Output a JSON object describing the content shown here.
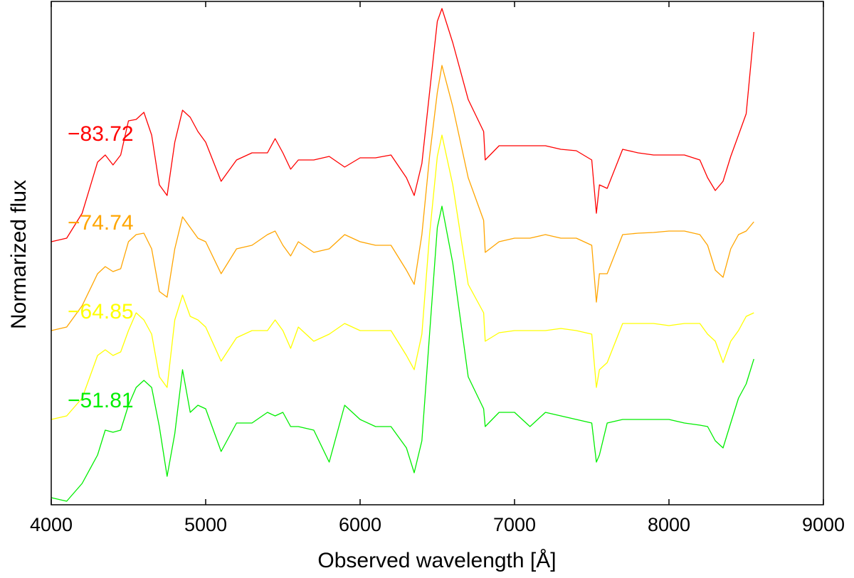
{
  "chart_data": {
    "type": "line",
    "xlabel": "Observed wavelength [Å]",
    "ylabel": "Normarized flux",
    "xlim": [
      4000,
      9000
    ],
    "xticks": [
      4000,
      5000,
      6000,
      7000,
      8000,
      9000
    ],
    "ylim": [
      0,
      7
    ],
    "x": [
      4000,
      4100,
      4200,
      4300,
      4350,
      4400,
      4450,
      4500,
      4550,
      4600,
      4650,
      4700,
      4750,
      4800,
      4850,
      4900,
      4950,
      5000,
      5100,
      5200,
      5300,
      5400,
      5450,
      5500,
      5550,
      5600,
      5700,
      5800,
      5900,
      6000,
      6100,
      6200,
      6300,
      6350,
      6400,
      6450,
      6500,
      6530,
      6600,
      6700,
      6800,
      6810,
      6900,
      7000,
      7100,
      7200,
      7300,
      7400,
      7500,
      7530,
      7550,
      7600,
      7700,
      7800,
      7900,
      8000,
      8100,
      8200,
      8250,
      8300,
      8350,
      8400,
      8450,
      8500,
      8550
    ],
    "series": [
      {
        "name": "−83.72",
        "color": "#ff0000",
        "values": [
          3.7,
          3.75,
          4.1,
          4.82,
          4.92,
          4.78,
          4.92,
          5.4,
          5.42,
          5.52,
          5.2,
          4.5,
          4.35,
          5.1,
          5.55,
          5.45,
          5.25,
          5.1,
          4.55,
          4.85,
          4.95,
          4.95,
          5.15,
          4.95,
          4.72,
          4.85,
          4.85,
          4.9,
          4.75,
          4.88,
          4.88,
          4.92,
          4.6,
          4.35,
          4.8,
          5.8,
          6.8,
          6.98,
          6.5,
          5.7,
          5.25,
          4.85,
          5.05,
          5.05,
          5.05,
          5.05,
          5.0,
          4.98,
          4.85,
          4.1,
          4.5,
          4.45,
          5.0,
          4.95,
          4.92,
          4.92,
          4.92,
          4.85,
          4.6,
          4.42,
          4.55,
          4.9,
          5.2,
          5.5,
          6.65
        ]
      },
      {
        "name": "−74.74",
        "color": "#ffa500",
        "values": [
          2.45,
          2.5,
          2.8,
          3.25,
          3.35,
          3.28,
          3.32,
          3.7,
          3.8,
          3.82,
          3.6,
          3.0,
          2.92,
          3.6,
          4.05,
          3.9,
          3.75,
          3.7,
          3.25,
          3.6,
          3.65,
          3.8,
          3.85,
          3.65,
          3.5,
          3.7,
          3.55,
          3.6,
          3.8,
          3.7,
          3.65,
          3.65,
          3.3,
          3.1,
          3.8,
          4.9,
          5.8,
          6.18,
          5.6,
          4.6,
          4.0,
          3.55,
          3.7,
          3.75,
          3.75,
          3.8,
          3.75,
          3.75,
          3.65,
          2.85,
          3.25,
          3.25,
          3.8,
          3.82,
          3.83,
          3.85,
          3.85,
          3.8,
          3.65,
          3.3,
          3.2,
          3.6,
          3.8,
          3.85,
          3.98
        ]
      },
      {
        "name": "−64.85",
        "color": "#ffff00",
        "values": [
          1.2,
          1.25,
          1.5,
          2.1,
          2.18,
          2.1,
          2.15,
          2.45,
          2.7,
          2.6,
          2.4,
          1.8,
          1.65,
          2.6,
          2.95,
          2.65,
          2.6,
          2.5,
          2.02,
          2.35,
          2.45,
          2.45,
          2.6,
          2.45,
          2.2,
          2.5,
          2.3,
          2.4,
          2.55,
          2.45,
          2.45,
          2.45,
          2.1,
          1.9,
          2.4,
          3.8,
          4.9,
          5.2,
          4.5,
          3.1,
          2.7,
          2.3,
          2.42,
          2.45,
          2.45,
          2.45,
          2.48,
          2.45,
          2.4,
          1.65,
          1.9,
          2.0,
          2.55,
          2.55,
          2.55,
          2.52,
          2.55,
          2.55,
          2.4,
          2.3,
          2.0,
          2.3,
          2.45,
          2.65,
          2.7
        ]
      },
      {
        "name": "−51.81",
        "color": "#00ee00",
        "values": [
          0.1,
          0.05,
          0.3,
          0.7,
          1.05,
          1.02,
          1.05,
          1.4,
          1.65,
          1.75,
          1.65,
          1.1,
          0.4,
          1.0,
          1.9,
          1.3,
          1.4,
          1.35,
          0.75,
          1.15,
          1.15,
          1.3,
          1.25,
          1.3,
          1.1,
          1.1,
          1.05,
          0.6,
          1.4,
          1.2,
          1.1,
          1.1,
          0.8,
          0.45,
          0.9,
          2.4,
          3.9,
          4.2,
          3.4,
          1.8,
          1.35,
          1.1,
          1.3,
          1.3,
          1.1,
          1.3,
          1.25,
          1.2,
          1.15,
          0.6,
          0.7,
          1.15,
          1.2,
          1.2,
          1.2,
          1.2,
          1.15,
          1.12,
          1.1,
          0.9,
          0.8,
          1.15,
          1.5,
          1.7,
          2.05
        ]
      }
    ]
  }
}
